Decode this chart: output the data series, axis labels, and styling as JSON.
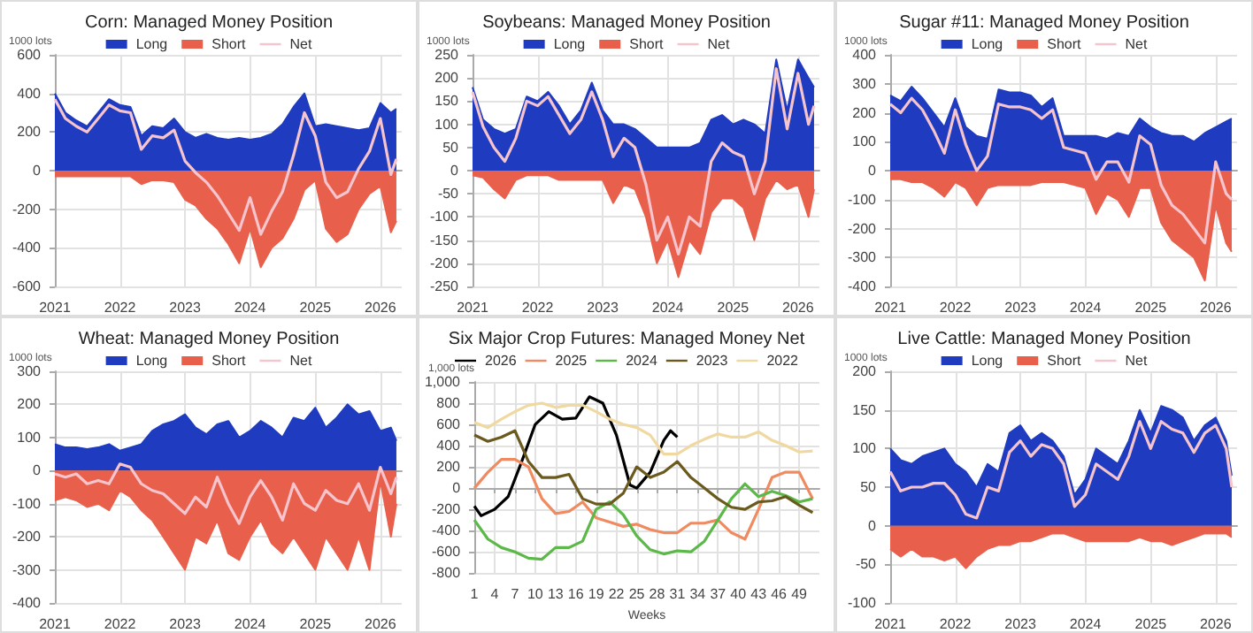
{
  "chart_data": [
    {
      "type": "area",
      "title": "Corn: Managed Money Position",
      "ylabel": "1000 lots",
      "legend": "top",
      "grid": true,
      "marker": "none",
      "x": [
        "2021-01",
        "2021-03",
        "2021-05",
        "2021-07",
        "2021-09",
        "2021-11",
        "2022-01",
        "2022-03",
        "2022-05",
        "2022-07",
        "2022-09",
        "2022-11",
        "2023-01",
        "2023-03",
        "2023-05",
        "2023-07",
        "2023-09",
        "2023-11",
        "2024-01",
        "2024-03",
        "2024-05",
        "2024-07",
        "2024-09",
        "2024-11",
        "2025-01",
        "2025-03",
        "2025-05",
        "2025-07",
        "2025-09",
        "2025-11",
        "2026-01",
        "2026-03",
        "2026-04"
      ],
      "xlim": [
        "2021-01",
        "2026-05"
      ],
      "xticks": [
        "2021",
        "2022",
        "2023",
        "2024",
        "2025",
        "2026"
      ],
      "ylim": [
        -600,
        600
      ],
      "yticks": [
        -600,
        -400,
        -200,
        0,
        200,
        400,
        600
      ],
      "series": [
        {
          "name": "Long",
          "color": "#1f3cc0",
          "values": [
            400,
            300,
            260,
            230,
            300,
            370,
            340,
            330,
            180,
            230,
            220,
            270,
            200,
            170,
            190,
            170,
            160,
            170,
            160,
            170,
            190,
            240,
            330,
            400,
            230,
            240,
            230,
            220,
            210,
            220,
            350,
            300,
            320
          ]
        },
        {
          "name": "Short",
          "color": "#e8604c",
          "values": [
            -30,
            -30,
            -30,
            -30,
            -30,
            -30,
            -30,
            -30,
            -70,
            -50,
            -50,
            -60,
            -150,
            -180,
            -250,
            -300,
            -380,
            -480,
            -300,
            -500,
            -400,
            -350,
            -250,
            -100,
            -50,
            -300,
            -370,
            -330,
            -200,
            -120,
            -80,
            -320,
            -260
          ]
        },
        {
          "name": "Net",
          "type": "line",
          "color": "#f5c4cc",
          "values": [
            370,
            270,
            230,
            200,
            270,
            340,
            310,
            300,
            110,
            180,
            170,
            210,
            50,
            -10,
            -60,
            -130,
            -220,
            -310,
            -140,
            -330,
            -210,
            -110,
            80,
            300,
            180,
            -60,
            -140,
            -110,
            10,
            100,
            270,
            -20,
            60
          ]
        }
      ]
    },
    {
      "type": "area",
      "title": "Soybeans: Managed Money Position",
      "ylabel": "1000 lots",
      "legend": "top",
      "grid": true,
      "marker": "none",
      "x": [
        "2021-01",
        "2021-03",
        "2021-05",
        "2021-07",
        "2021-09",
        "2021-11",
        "2022-01",
        "2022-03",
        "2022-05",
        "2022-07",
        "2022-09",
        "2022-11",
        "2023-01",
        "2023-03",
        "2023-05",
        "2023-07",
        "2023-09",
        "2023-11",
        "2024-01",
        "2024-03",
        "2024-05",
        "2024-07",
        "2024-09",
        "2024-11",
        "2025-01",
        "2025-03",
        "2025-05",
        "2025-07",
        "2025-09",
        "2025-11",
        "2026-01",
        "2026-03",
        "2026-04"
      ],
      "xlim": [
        "2021-01",
        "2026-05"
      ],
      "xticks": [
        "2021",
        "2022",
        "2023",
        "2024",
        "2025",
        "2026"
      ],
      "ylim": [
        -250,
        250
      ],
      "yticks": [
        -250,
        -200,
        -150,
        -100,
        -50,
        0,
        50,
        100,
        150,
        200,
        250
      ],
      "series": [
        {
          "name": "Long",
          "color": "#1f3cc0",
          "values": [
            180,
            110,
            90,
            80,
            90,
            160,
            150,
            170,
            140,
            100,
            130,
            190,
            130,
            100,
            100,
            90,
            70,
            50,
            50,
            50,
            50,
            60,
            110,
            120,
            100,
            110,
            100,
            80,
            240,
            130,
            240,
            200,
            180
          ]
        },
        {
          "name": "Short",
          "color": "#e8604c",
          "values": [
            -10,
            -15,
            -40,
            -60,
            -20,
            -10,
            -10,
            -10,
            -20,
            -20,
            -20,
            -20,
            -20,
            -70,
            -30,
            -40,
            -100,
            -200,
            -150,
            -230,
            -150,
            -180,
            -90,
            -60,
            -60,
            -80,
            -150,
            -60,
            -20,
            -40,
            -30,
            -100,
            -40
          ]
        },
        {
          "name": "Net",
          "type": "line",
          "color": "#f5c4cc",
          "values": [
            170,
            95,
            50,
            20,
            70,
            150,
            140,
            160,
            120,
            80,
            110,
            170,
            110,
            30,
            70,
            50,
            -30,
            -150,
            -100,
            -180,
            -100,
            -120,
            20,
            60,
            40,
            30,
            -50,
            20,
            220,
            90,
            210,
            100,
            140
          ]
        }
      ]
    },
    {
      "type": "area",
      "title": "Sugar #11: Managed Money Position",
      "ylabel": "1000 lots",
      "legend": "top",
      "grid": true,
      "marker": "none",
      "x": [
        "2021-01",
        "2021-03",
        "2021-05",
        "2021-07",
        "2021-09",
        "2021-11",
        "2022-01",
        "2022-03",
        "2022-05",
        "2022-07",
        "2022-09",
        "2022-11",
        "2023-01",
        "2023-03",
        "2023-05",
        "2023-07",
        "2023-09",
        "2023-11",
        "2024-01",
        "2024-03",
        "2024-05",
        "2024-07",
        "2024-09",
        "2024-11",
        "2025-01",
        "2025-03",
        "2025-05",
        "2025-07",
        "2025-09",
        "2025-11",
        "2026-01",
        "2026-03",
        "2026-04"
      ],
      "xlim": [
        "2021-01",
        "2026-05"
      ],
      "xticks": [
        "2021",
        "2022",
        "2023",
        "2024",
        "2025",
        "2026"
      ],
      "ylim": [
        -400,
        400
      ],
      "yticks": [
        -400,
        -300,
        -200,
        -100,
        0,
        100,
        200,
        300,
        400
      ],
      "series": [
        {
          "name": "Long",
          "color": "#1f3cc0",
          "values": [
            260,
            240,
            290,
            250,
            200,
            150,
            250,
            150,
            120,
            110,
            280,
            270,
            270,
            260,
            220,
            250,
            120,
            120,
            120,
            120,
            110,
            130,
            120,
            180,
            150,
            130,
            120,
            120,
            100,
            130,
            150,
            170,
            180
          ]
        },
        {
          "name": "Short",
          "color": "#e8604c",
          "values": [
            -30,
            -30,
            -40,
            -40,
            -60,
            -90,
            -40,
            -60,
            -120,
            -60,
            -50,
            -50,
            -50,
            -50,
            -40,
            -40,
            -40,
            -50,
            -60,
            -150,
            -80,
            -100,
            -160,
            -60,
            -60,
            -180,
            -240,
            -270,
            -300,
            -380,
            -120,
            -250,
            -280
          ]
        },
        {
          "name": "Net",
          "type": "line",
          "color": "#f5c4cc",
          "values": [
            230,
            200,
            250,
            210,
            140,
            60,
            210,
            90,
            0,
            50,
            230,
            220,
            220,
            210,
            180,
            210,
            80,
            70,
            60,
            -30,
            30,
            30,
            -40,
            120,
            90,
            -50,
            -120,
            -150,
            -200,
            -250,
            30,
            -80,
            -100
          ]
        }
      ]
    },
    {
      "type": "area",
      "title": "Wheat: Managed Money Position",
      "ylabel": "1000 lots",
      "legend": "top",
      "grid": true,
      "marker": "none",
      "x": [
        "2021-01",
        "2021-03",
        "2021-05",
        "2021-07",
        "2021-09",
        "2021-11",
        "2022-01",
        "2022-03",
        "2022-05",
        "2022-07",
        "2022-09",
        "2022-11",
        "2023-01",
        "2023-03",
        "2023-05",
        "2023-07",
        "2023-09",
        "2023-11",
        "2024-01",
        "2024-03",
        "2024-05",
        "2024-07",
        "2024-09",
        "2024-11",
        "2025-01",
        "2025-03",
        "2025-05",
        "2025-07",
        "2025-09",
        "2025-11",
        "2026-01",
        "2026-03",
        "2026-04"
      ],
      "xlim": [
        "2021-01",
        "2026-05"
      ],
      "xticks": [
        "2021",
        "2022",
        "2023",
        "2024",
        "2025",
        "2026"
      ],
      "ylim": [
        -400,
        300
      ],
      "yticks": [
        -400,
        -300,
        -200,
        -100,
        0,
        100,
        200,
        300
      ],
      "series": [
        {
          "name": "Long",
          "color": "#1f3cc0",
          "values": [
            80,
            70,
            70,
            65,
            70,
            80,
            60,
            70,
            80,
            120,
            140,
            150,
            170,
            130,
            110,
            140,
            150,
            100,
            120,
            150,
            130,
            100,
            160,
            150,
            190,
            130,
            160,
            200,
            170,
            180,
            120,
            130,
            90
          ]
        },
        {
          "name": "Short",
          "color": "#e8604c",
          "values": [
            -90,
            -80,
            -90,
            -110,
            -100,
            -120,
            -60,
            -80,
            -120,
            -150,
            -200,
            -250,
            -300,
            -200,
            -220,
            -150,
            -250,
            -270,
            -200,
            -150,
            -220,
            -250,
            -200,
            -250,
            -300,
            -200,
            -250,
            -300,
            -200,
            -300,
            -30,
            -200,
            -100
          ]
        },
        {
          "name": "Net",
          "type": "line",
          "color": "#f5c4cc",
          "values": [
            -10,
            -20,
            -10,
            -40,
            -30,
            -40,
            20,
            10,
            -40,
            -60,
            -70,
            -100,
            -130,
            -80,
            -110,
            -20,
            -100,
            -160,
            -80,
            -30,
            -80,
            -150,
            -40,
            -100,
            -120,
            -60,
            -90,
            -100,
            -40,
            -120,
            10,
            -70,
            -20
          ]
        }
      ]
    },
    {
      "type": "line",
      "title": "Six Major Crop Futures: Managed Money Net",
      "ylabel": "1,000 lots",
      "xlabel": "Weeks",
      "legend": "top",
      "grid": true,
      "marker": "none",
      "xlim": [
        1,
        52
      ],
      "xticks": [
        1,
        4,
        7,
        10,
        13,
        16,
        19,
        22,
        25,
        28,
        31,
        34,
        37,
        40,
        43,
        46,
        49
      ],
      "ylim": [
        -800,
        1000
      ],
      "yticks": [
        -800,
        -600,
        -400,
        -200,
        0,
        200,
        400,
        600,
        800,
        {
          "value": 1000,
          "label": "1,000"
        }
      ],
      "x": [
        1,
        3,
        5,
        7,
        9,
        11,
        13,
        15,
        17,
        19,
        21,
        23,
        25,
        27,
        29,
        31,
        33,
        35,
        37,
        39,
        41,
        43,
        45,
        47,
        49,
        51
      ],
      "series": [
        {
          "name": "2026",
          "color": "#000000",
          "x": [
            1,
            2,
            4,
            6,
            8,
            10,
            12,
            14,
            16,
            18,
            20,
            22,
            24,
            25,
            27,
            29,
            30,
            31
          ],
          "values": [
            -170,
            -260,
            -200,
            -80,
            250,
            600,
            720,
            650,
            660,
            860,
            800,
            500,
            30,
            0,
            150,
            450,
            540,
            480
          ]
        },
        {
          "name": "2025",
          "color": "#f08a60",
          "values": [
            0,
            150,
            270,
            270,
            200,
            -100,
            -240,
            -220,
            -130,
            -280,
            -320,
            -360,
            -340,
            -390,
            -420,
            -420,
            -330,
            -330,
            -300,
            -420,
            -480,
            -200,
            100,
            150,
            150,
            -100
          ]
        },
        {
          "name": "2024",
          "color": "#5cb848",
          "values": [
            -300,
            -480,
            -560,
            -600,
            -660,
            -670,
            -560,
            -560,
            -500,
            -200,
            -130,
            -250,
            -450,
            -580,
            -620,
            -590,
            -600,
            -500,
            -300,
            -100,
            40,
            -80,
            -30,
            -70,
            -130,
            -100
          ]
        },
        {
          "name": "2023",
          "color": "#6b5a1e",
          "values": [
            500,
            440,
            480,
            540,
            250,
            100,
            100,
            130,
            -100,
            -150,
            -150,
            -50,
            200,
            100,
            150,
            250,
            100,
            0,
            -100,
            -180,
            -200,
            -130,
            -120,
            -80,
            -160,
            -230
          ]
        },
        {
          "name": "2022",
          "color": "#f0d9a0",
          "values": [
            620,
            570,
            650,
            720,
            780,
            800,
            760,
            780,
            780,
            720,
            650,
            600,
            570,
            500,
            320,
            320,
            400,
            460,
            510,
            480,
            480,
            530,
            450,
            400,
            340,
            350
          ]
        }
      ]
    },
    {
      "type": "area",
      "title": "Live Cattle: Managed Money Position",
      "ylabel": "1000 lots",
      "legend": "top",
      "grid": true,
      "marker": "none",
      "x": [
        "2021-01",
        "2021-03",
        "2021-05",
        "2021-07",
        "2021-09",
        "2021-11",
        "2022-01",
        "2022-03",
        "2022-05",
        "2022-07",
        "2022-09",
        "2022-11",
        "2023-01",
        "2023-03",
        "2023-05",
        "2023-07",
        "2023-09",
        "2023-11",
        "2024-01",
        "2024-03",
        "2024-05",
        "2024-07",
        "2024-09",
        "2024-11",
        "2025-01",
        "2025-03",
        "2025-05",
        "2025-07",
        "2025-09",
        "2025-11",
        "2026-01",
        "2026-03",
        "2026-04"
      ],
      "xlim": [
        "2021-01",
        "2026-05"
      ],
      "xticks": [
        "2021",
        "2022",
        "2023",
        "2024",
        "2025",
        "2026"
      ],
      "ylim": [
        -100,
        200
      ],
      "yticks": [
        -100,
        -50,
        0,
        50,
        100,
        150,
        200
      ],
      "series": [
        {
          "name": "Long",
          "color": "#1f3cc0",
          "values": [
            100,
            85,
            80,
            90,
            95,
            100,
            80,
            70,
            50,
            80,
            70,
            120,
            130,
            110,
            120,
            110,
            90,
            40,
            60,
            100,
            90,
            80,
            110,
            150,
            120,
            155,
            150,
            140,
            110,
            130,
            140,
            110,
            65
          ]
        },
        {
          "name": "Short",
          "color": "#e8604c",
          "values": [
            -30,
            -40,
            -30,
            -40,
            -40,
            -45,
            -40,
            -55,
            -40,
            -30,
            -25,
            -25,
            -20,
            -20,
            -15,
            -10,
            -10,
            -15,
            -20,
            -20,
            -20,
            -20,
            -20,
            -15,
            -20,
            -20,
            -25,
            -20,
            -15,
            -10,
            -10,
            -10,
            -15
          ]
        },
        {
          "name": "Net",
          "type": "line",
          "color": "#f5c4cc",
          "values": [
            70,
            45,
            50,
            50,
            55,
            55,
            40,
            15,
            10,
            50,
            45,
            95,
            110,
            90,
            105,
            100,
            80,
            25,
            40,
            80,
            70,
            60,
            90,
            135,
            100,
            135,
            125,
            120,
            95,
            120,
            130,
            100,
            50
          ]
        }
      ]
    }
  ]
}
